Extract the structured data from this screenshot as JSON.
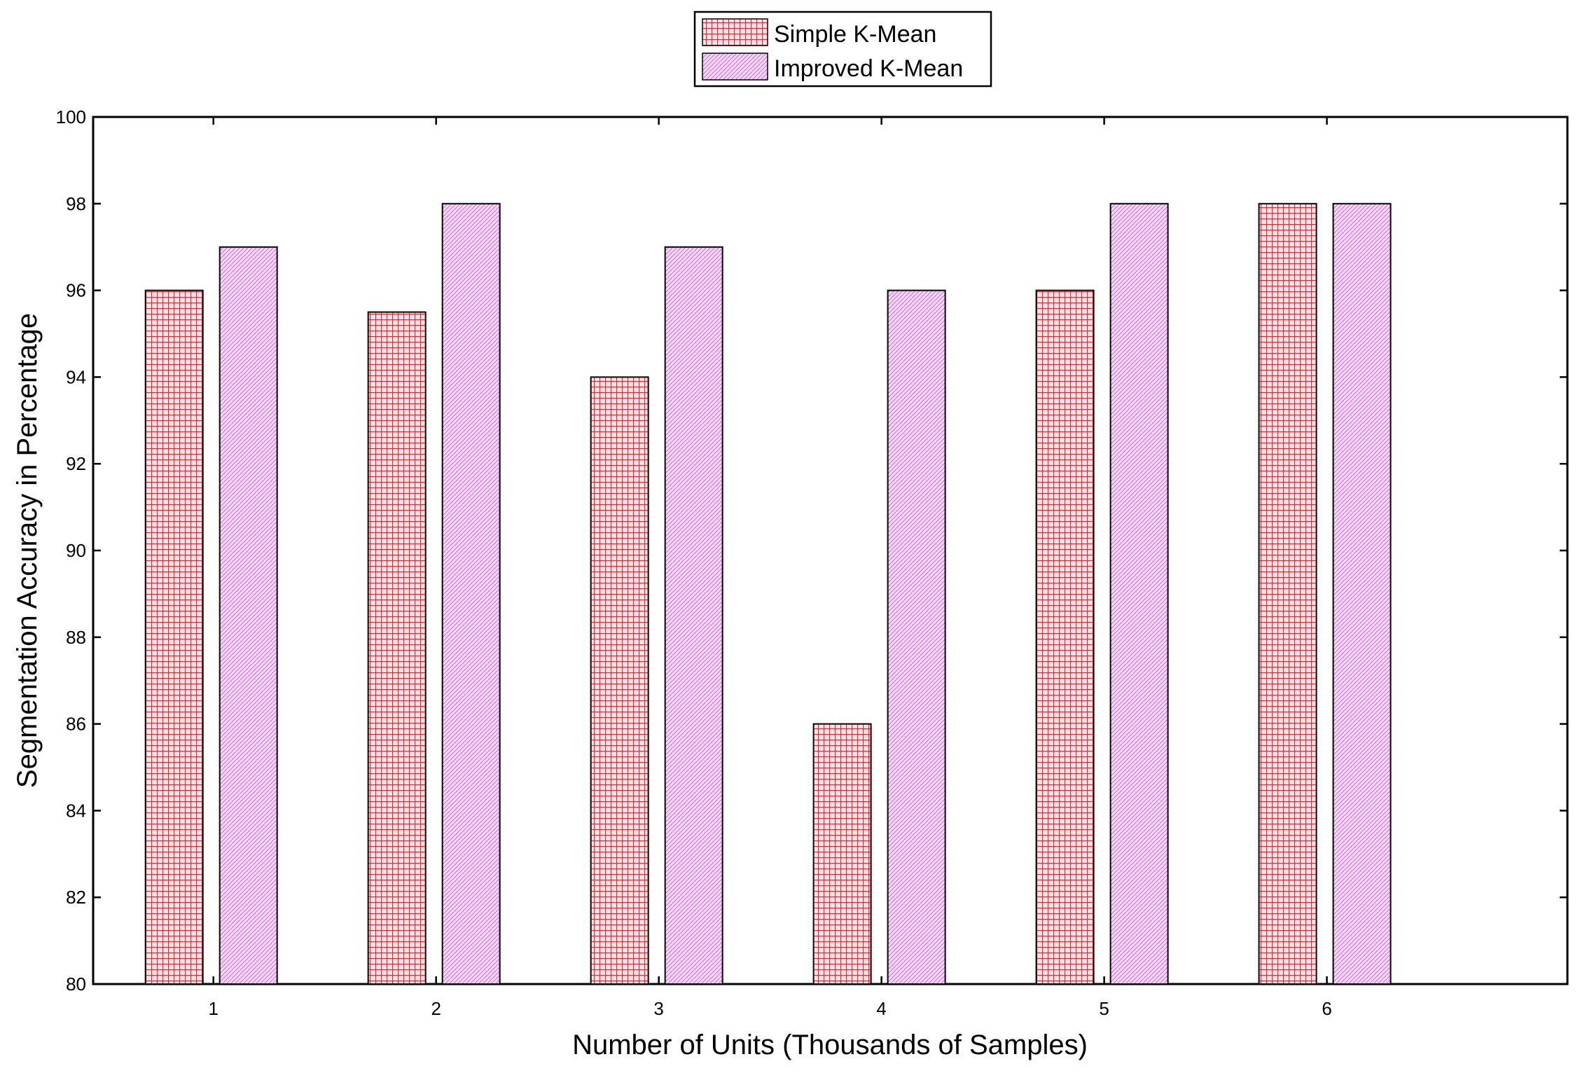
{
  "chart_data": {
    "type": "bar",
    "title": "",
    "xlabel": "Number of Units (Thousands of Samples)",
    "ylabel": "Segmentation Accuracy in Percentage",
    "categories": [
      "1",
      "2",
      "3",
      "4",
      "5",
      "6"
    ],
    "series": [
      {
        "name": "Simple K-Mean",
        "values": [
          96,
          95.5,
          94,
          86,
          96,
          98
        ],
        "color": "#e8232a",
        "fill": "#fbe3e5",
        "pattern": "grid"
      },
      {
        "name": "Improved K-Mean",
        "values": [
          97,
          98,
          97,
          96,
          98,
          98
        ],
        "color": "#c060c8",
        "fill": "#f6d6f8",
        "pattern": "diagonal"
      }
    ],
    "ylim": [
      80,
      100
    ],
    "yticks": [
      "80",
      "82",
      "84",
      "86",
      "88",
      "90",
      "92",
      "94",
      "96",
      "98",
      "100"
    ],
    "grid": false,
    "legend_position": "top-center-outside"
  }
}
